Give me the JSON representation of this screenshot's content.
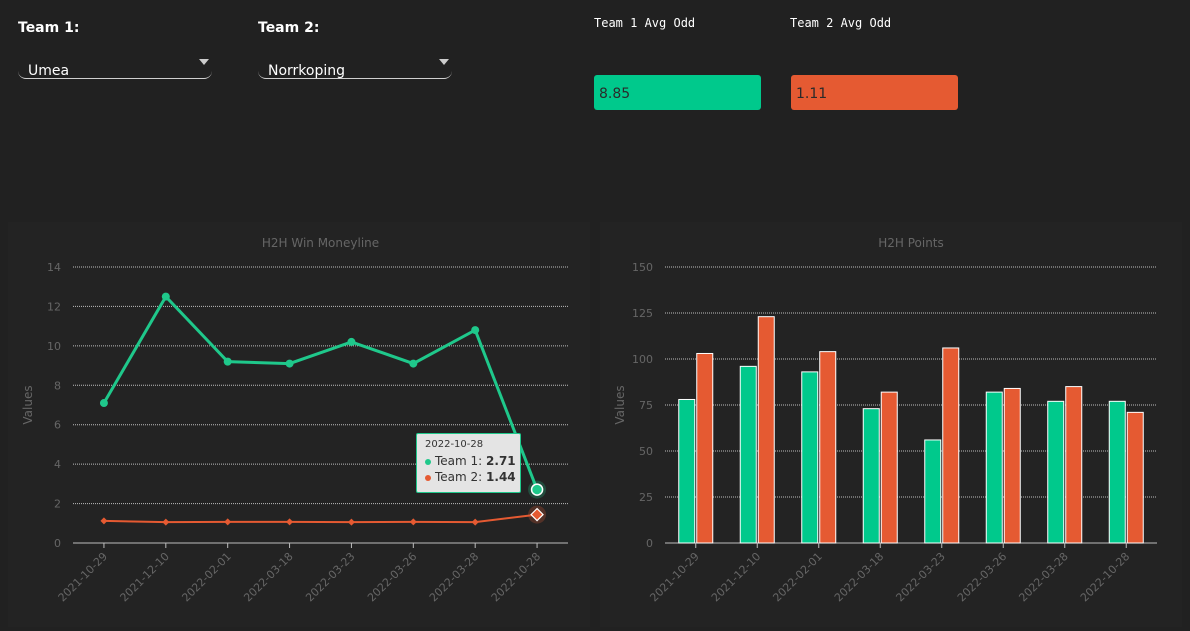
{
  "controls": {
    "team1": {
      "label": "Team 1:",
      "value": "Umea"
    },
    "team2": {
      "label": "Team 2:",
      "value": "Norrkoping"
    }
  },
  "odds": {
    "team1": {
      "label": "Team 1 Avg Odd",
      "value": "8.85",
      "color": "#00c98c"
    },
    "team2": {
      "label": "Team 2 Avg Odd",
      "value": "1.11",
      "color": "#e55a32"
    }
  },
  "tooltip": {
    "date": "2022-10-28",
    "rows": [
      {
        "name": "Team 1",
        "value": "2.71",
        "color": "#1fc88b"
      },
      {
        "name": "Team 2",
        "value": "1.44",
        "color": "#e55a32"
      }
    ]
  },
  "chart_data": [
    {
      "type": "line",
      "title": "H2H Win Moneyline",
      "ylabel": "Values",
      "xlabel": "",
      "x": [
        "2021-10-29",
        "2021-12-10",
        "2022-02-01",
        "2022-03-18",
        "2022-03-23",
        "2022-03-26",
        "2022-03-28",
        "2022-10-28"
      ],
      "ylim": [
        0,
        14
      ],
      "yticks": [
        "0",
        "2",
        "4",
        "6",
        "8",
        "10",
        "12",
        "14"
      ],
      "grid": true,
      "series": [
        {
          "name": "Team 1",
          "color": "#1fc88b",
          "values": [
            7.1,
            12.5,
            9.2,
            9.1,
            10.2,
            9.1,
            10.8,
            2.71
          ]
        },
        {
          "name": "Team 2",
          "color": "#e55a32",
          "values": [
            1.12,
            1.06,
            1.07,
            1.07,
            1.06,
            1.07,
            1.06,
            1.44
          ]
        }
      ]
    },
    {
      "type": "bar",
      "title": "H2H Points",
      "ylabel": "Values",
      "xlabel": "",
      "categories": [
        "2021-10-29",
        "2021-12-10",
        "2022-02-01",
        "2022-03-18",
        "2022-03-23",
        "2022-03-26",
        "2022-03-28",
        "2022-10-28"
      ],
      "ylim": [
        0,
        150
      ],
      "yticks": [
        "0",
        "25",
        "50",
        "75",
        "100",
        "125",
        "150"
      ],
      "grid": true,
      "series": [
        {
          "name": "Team 1",
          "color": "#00c98c",
          "values": [
            78,
            96,
            93,
            73,
            56,
            82,
            77,
            77
          ]
        },
        {
          "name": "Team 2",
          "color": "#e55a32",
          "values": [
            103,
            123,
            104,
            82,
            106,
            84,
            85,
            71
          ]
        }
      ]
    }
  ]
}
